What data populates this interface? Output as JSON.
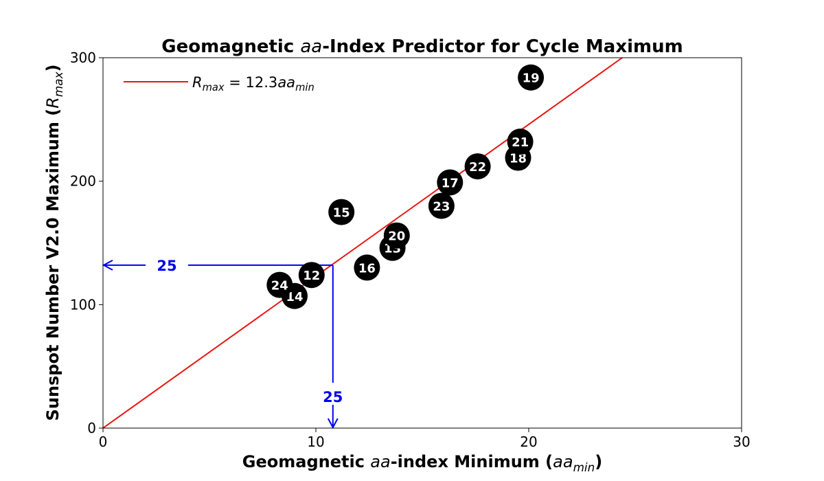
{
  "chart_data": {
    "type": "scatter",
    "title": {
      "before": "Geomagnetic ",
      "italic": "aa",
      "after": "-Index Predictor for Cycle Maximum"
    },
    "xlabel": {
      "before": "Geomagnetic ",
      "italic": "aa",
      "mid": "-index Minimum (",
      "sym": "aa",
      "sub": "min",
      "after": ")"
    },
    "ylabel": {
      "before": "Sunspot Number V2.0 Maximum (",
      "sym": "R",
      "sub": "max",
      "after": ")"
    },
    "xlim": [
      0,
      30
    ],
    "ylim": [
      0,
      300
    ],
    "xticks": [
      0,
      10,
      20,
      30
    ],
    "yticks": [
      0,
      100,
      200,
      300
    ],
    "grid": false,
    "legend_position": "top-left",
    "fit_line": {
      "slope": 12.3,
      "color": "#e8150f",
      "label": {
        "sym": "R",
        "sub1": "max",
        "eq": " = 12.3",
        "sym2": "aa",
        "sub2": "min"
      }
    },
    "points": [
      {
        "label": "12",
        "x": 9.8,
        "y": 124
      },
      {
        "label": "13",
        "x": 13.6,
        "y": 146
      },
      {
        "label": "14",
        "x": 9.0,
        "y": 107
      },
      {
        "label": "15",
        "x": 11.2,
        "y": 175
      },
      {
        "label": "16",
        "x": 12.4,
        "y": 130
      },
      {
        "label": "17",
        "x": 16.3,
        "y": 199
      },
      {
        "label": "18",
        "x": 19.5,
        "y": 219
      },
      {
        "label": "19",
        "x": 20.1,
        "y": 284
      },
      {
        "label": "20",
        "x": 13.8,
        "y": 156
      },
      {
        "label": "21",
        "x": 19.6,
        "y": 232
      },
      {
        "label": "22",
        "x": 17.6,
        "y": 212
      },
      {
        "label": "23",
        "x": 15.9,
        "y": 180
      },
      {
        "label": "24",
        "x": 8.3,
        "y": 116
      }
    ],
    "point_color": "#000000",
    "prediction": {
      "x": 10.8,
      "y": 132,
      "label_x": "25",
      "label_y": "25",
      "color": "#0000ee"
    }
  }
}
